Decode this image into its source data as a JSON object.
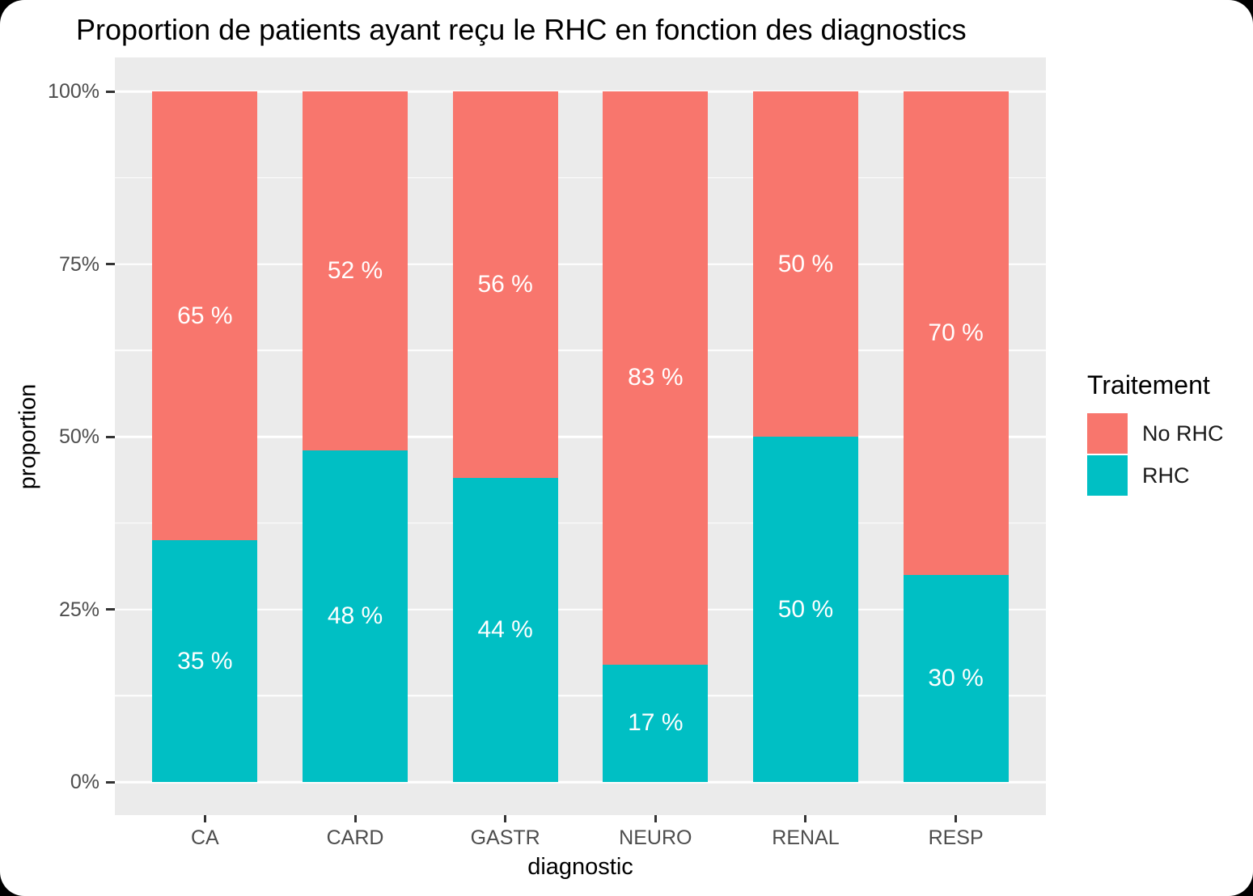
{
  "chart_data": {
    "type": "bar",
    "variant": "stacked-percent",
    "title": "Proportion de patients ayant reçu le RHC en fonction des diagnostics",
    "xlabel": "diagnostic",
    "ylabel": "proportion",
    "categories": [
      "CA",
      "CARD",
      "GASTR",
      "NEURO",
      "RENAL",
      "RESP"
    ],
    "series": [
      {
        "name": "No RHC",
        "color": "#F8766D",
        "values": [
          65,
          52,
          56,
          83,
          50,
          70
        ],
        "labels": [
          "65 %",
          "52 %",
          "56 %",
          "83 %",
          "50 %",
          "70 %"
        ]
      },
      {
        "name": "RHC",
        "color": "#00BFC4",
        "values": [
          35,
          48,
          44,
          17,
          50,
          30
        ],
        "labels": [
          "35 %",
          "48 %",
          "44 %",
          "17 %",
          "50 %",
          "30 %"
        ]
      }
    ],
    "stack_order_top_to_bottom": [
      "No RHC",
      "RHC"
    ],
    "ylim": [
      0,
      100
    ],
    "y_ticks": [
      {
        "value": 0,
        "label": "0%"
      },
      {
        "value": 25,
        "label": "25%"
      },
      {
        "value": 50,
        "label": "50%"
      },
      {
        "value": 75,
        "label": "75%"
      },
      {
        "value": 100,
        "label": "100%"
      }
    ],
    "y_minor_ticks": [
      12.5,
      37.5,
      62.5,
      87.5
    ],
    "legend": {
      "title": "Traitement",
      "position": "right",
      "entries": [
        "No RHC",
        "RHC"
      ]
    },
    "style": {
      "panel_bg": "#EBEBEB",
      "grid_color": "#FFFFFF",
      "axis_text_color": "#4D4D4D",
      "tick_mark_color": "#333333",
      "bar_label_color": "#FFFFFF",
      "bar_width_rel": 0.7,
      "grid": true
    }
  }
}
